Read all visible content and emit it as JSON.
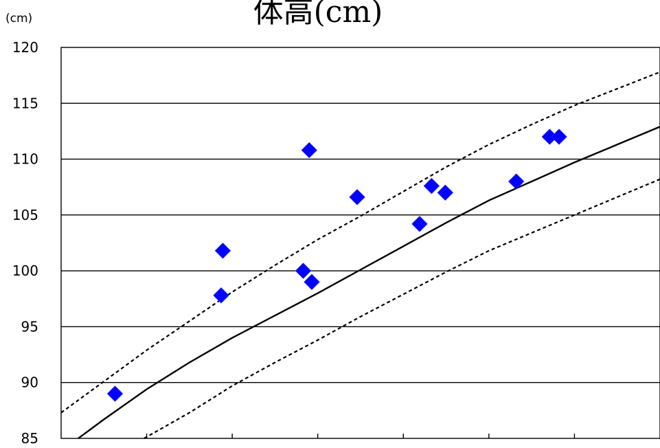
{
  "chart_data": {
    "type": "scatter",
    "title": "体高(cm)",
    "unit_label": "(cm)",
    "ylim": [
      85,
      120
    ],
    "yticks": [
      "120",
      "115",
      "110",
      "105",
      "100",
      "95",
      "90",
      "85"
    ],
    "xlim": [
      0,
      7
    ],
    "xticks_count": 6,
    "grid": true,
    "marker_color": "#0000ff",
    "points": [
      {
        "x": 0.63,
        "y": 89.0
      },
      {
        "x": 1.87,
        "y": 97.8
      },
      {
        "x": 1.89,
        "y": 101.8
      },
      {
        "x": 2.83,
        "y": 100.0
      },
      {
        "x": 2.9,
        "y": 110.8
      },
      {
        "x": 2.93,
        "y": 99.0
      },
      {
        "x": 3.46,
        "y": 106.6
      },
      {
        "x": 4.19,
        "y": 104.2
      },
      {
        "x": 4.33,
        "y": 107.6
      },
      {
        "x": 4.49,
        "y": 107.0
      },
      {
        "x": 5.32,
        "y": 108.0
      },
      {
        "x": 5.71,
        "y": 112.0
      },
      {
        "x": 5.82,
        "y": 112.0
      }
    ],
    "reference_curves": [
      {
        "style": "dashed",
        "x": [
          0,
          0.5,
          1,
          1.5,
          2,
          2.5,
          3,
          3.5,
          4,
          4.5,
          5,
          5.5,
          6,
          6.5,
          7
        ],
        "y": [
          87.3,
          90.1,
          92.9,
          95.5,
          98.1,
          100.5,
          102.8,
          104.9,
          107.1,
          109.3,
          111.3,
          113.1,
          114.8,
          116.3,
          117.8
        ]
      },
      {
        "style": "solid",
        "x": [
          0.2,
          0.5,
          1,
          1.5,
          2,
          2.5,
          3,
          3.5,
          4,
          4.5,
          5,
          5.5,
          6,
          6.5,
          7
        ],
        "y": [
          85.0,
          86.7,
          89.4,
          91.8,
          94.0,
          96.0,
          98.0,
          100.1,
          102.2,
          104.3,
          106.3,
          108.0,
          109.7,
          111.3,
          112.9
        ]
      },
      {
        "style": "dashed",
        "x": [
          0.97,
          1.5,
          2,
          2.5,
          3,
          3.5,
          4,
          4.5,
          5,
          5.5,
          6,
          6.5,
          7
        ],
        "y": [
          85.0,
          87.3,
          89.7,
          91.8,
          93.8,
          95.9,
          97.9,
          99.9,
          101.8,
          103.4,
          105.0,
          106.6,
          108.2
        ]
      }
    ]
  }
}
